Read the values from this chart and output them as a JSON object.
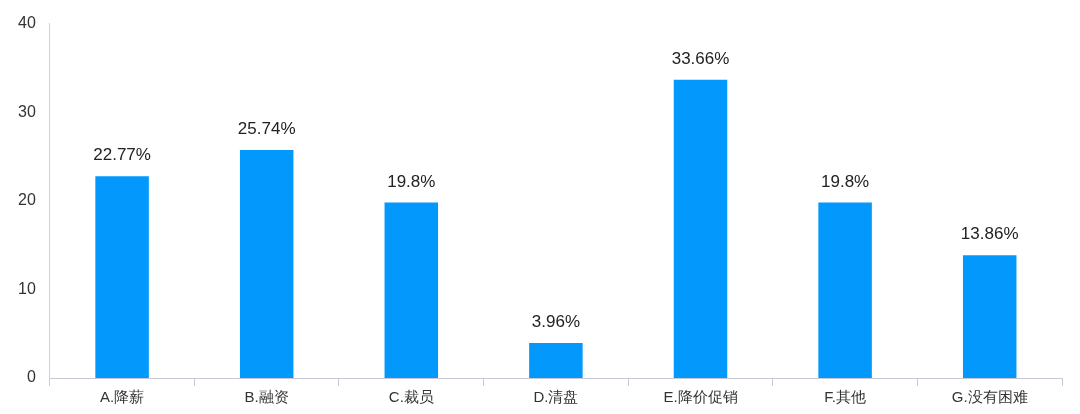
{
  "chart_data": {
    "type": "bar",
    "categories": [
      "A.降薪",
      "B.融资",
      "C.裁员",
      "D.清盘",
      "E.降价促销",
      "F.其他",
      "G.没有困难"
    ],
    "values": [
      22.77,
      25.74,
      19.8,
      3.96,
      33.66,
      19.8,
      13.86
    ],
    "color": "#0398fb",
    "value_labels": [
      "22.77%",
      "25.74%",
      "19.8%",
      "3.96%",
      "33.66%",
      "19.8%",
      "13.86%"
    ],
    "ylim": [
      0,
      40
    ],
    "yticks": [
      0,
      10,
      20,
      30,
      40
    ]
  }
}
